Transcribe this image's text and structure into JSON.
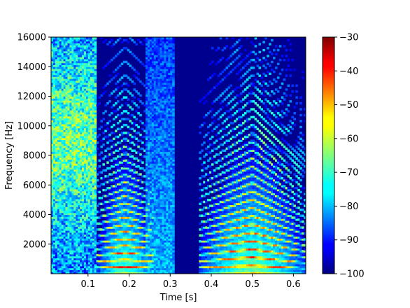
{
  "chart_data": {
    "type": "heatmap",
    "subtype": "spectrogram",
    "colormap": "jet",
    "xlabel": "Time [s]",
    "ylabel": "Frequency [Hz]",
    "xlim": [
      0.01,
      0.63
    ],
    "ylim": [
      0,
      16000
    ],
    "xticks": [
      0.1,
      0.2,
      0.3,
      0.4,
      0.5,
      0.6
    ],
    "xtick_labels": [
      "0.1",
      "0.2",
      "0.3",
      "0.4",
      "0.5",
      "0.6"
    ],
    "yticks": [
      2000,
      4000,
      6000,
      8000,
      10000,
      12000,
      14000,
      16000
    ],
    "ytick_labels": [
      "2000",
      "4000",
      "6000",
      "8000",
      "10000",
      "12000",
      "14000",
      "16000"
    ],
    "colorbar": {
      "range": [
        -100,
        -30
      ],
      "ticks": [
        -100,
        -90,
        -80,
        -70,
        -60,
        -50,
        -40,
        -30
      ],
      "tick_labels": [
        "−100",
        "−90",
        "−80",
        "−70",
        "−60",
        "−50",
        "−40",
        "−30"
      ]
    },
    "segments": [
      {
        "kind": "noise",
        "t_start": 0.01,
        "t_end": 0.12,
        "f_center": 9000,
        "level_db": -70
      },
      {
        "kind": "voiced",
        "t_start": 0.12,
        "t_end": 0.26,
        "f0_start": 420,
        "f0_peak": 480,
        "f0_end": 420,
        "peak_level_db": -35
      },
      {
        "kind": "burst",
        "t_start": 0.24,
        "t_end": 0.31,
        "level_db": -85
      },
      {
        "kind": "silence",
        "t_start": 0.32,
        "t_end": 0.37,
        "level_db": -100
      },
      {
        "kind": "voiced",
        "t_start": 0.37,
        "t_end": 0.63,
        "f0_start": 430,
        "f0_peak": 560,
        "f0_end": 380,
        "peak_level_db": -33
      }
    ],
    "background_level_db": -100
  }
}
